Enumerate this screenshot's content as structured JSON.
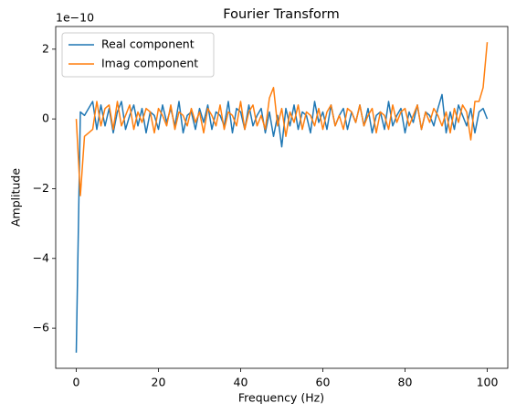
{
  "chart_data": {
    "type": "line",
    "title": "Fourier Transform",
    "xlabel": "Frequency (Hz)",
    "ylabel": "Amplitude",
    "y_offset_label": "1e−10",
    "x": [
      0,
      1,
      2,
      3,
      4,
      5,
      6,
      7,
      8,
      9,
      10,
      11,
      12,
      13,
      14,
      15,
      16,
      17,
      18,
      19,
      20,
      21,
      22,
      23,
      24,
      25,
      26,
      27,
      28,
      29,
      30,
      31,
      32,
      33,
      34,
      35,
      36,
      37,
      38,
      39,
      40,
      41,
      42,
      43,
      44,
      45,
      46,
      47,
      48,
      49,
      50,
      51,
      52,
      53,
      54,
      55,
      56,
      57,
      58,
      59,
      60,
      61,
      62,
      63,
      64,
      65,
      66,
      67,
      68,
      69,
      70,
      71,
      72,
      73,
      74,
      75,
      76,
      77,
      78,
      79,
      80,
      81,
      82,
      83,
      84,
      85,
      86,
      87,
      88,
      89,
      90,
      91,
      92,
      93,
      94,
      95,
      96,
      97,
      98,
      99,
      100
    ],
    "series": [
      {
        "name": "Real component",
        "color": "#1f77b4",
        "values": [
          -6.7,
          0.2,
          0.1,
          0.3,
          0.5,
          -0.3,
          0.4,
          -0.2,
          0.3,
          -0.4,
          0.2,
          0.5,
          -0.3,
          0.1,
          0.4,
          -0.2,
          0.3,
          -0.4,
          0.2,
          0.1,
          -0.3,
          0.4,
          -0.1,
          0.3,
          -0.2,
          0.5,
          -0.4,
          0.1,
          0.2,
          -0.3,
          0.3,
          -0.1,
          0.4,
          -0.3,
          0.2,
          0.1,
          -0.2,
          0.5,
          -0.4,
          0.3,
          0.2,
          -0.3,
          0.4,
          -0.2,
          0.1,
          0.3,
          -0.4,
          0.2,
          -0.5,
          0.1,
          -0.8,
          0.3,
          -0.2,
          0.4,
          -0.3,
          0.2,
          0.1,
          -0.4,
          0.5,
          -0.1,
          0.2,
          -0.3,
          0.4,
          -0.2,
          0.1,
          0.3,
          -0.3,
          0.2,
          -0.1,
          0.4,
          -0.2,
          0.3,
          -0.4,
          0.1,
          0.2,
          -0.3,
          0.5,
          -0.2,
          0.1,
          0.3,
          -0.4,
          0.2,
          -0.1,
          0.4,
          -0.3,
          0.2,
          0.1,
          -0.2,
          0.3,
          0.7,
          -0.4,
          0.2,
          -0.3,
          0.4,
          0.1,
          -0.2,
          0.3,
          -0.4,
          0.2,
          0.3,
          0.0
        ]
      },
      {
        "name": "Imag component",
        "color": "#ff7f0e",
        "values": [
          0,
          -2.2,
          -0.5,
          -0.4,
          -0.3,
          0.5,
          -0.2,
          0.3,
          0.4,
          -0.3,
          0.5,
          -0.2,
          0.1,
          0.4,
          -0.3,
          0.2,
          -0.1,
          0.3,
          0.2,
          -0.4,
          0.3,
          0.1,
          -0.2,
          0.4,
          -0.3,
          0.2,
          0.1,
          -0.2,
          0.3,
          -0.1,
          0.2,
          -0.4,
          0.3,
          0.1,
          -0.2,
          0.4,
          -0.3,
          0.2,
          0.1,
          -0.2,
          0.5,
          -0.3,
          0.2,
          0.4,
          -0.2,
          0.1,
          -0.3,
          0.6,
          0.9,
          -0.2,
          0.3,
          -0.5,
          0.2,
          -0.1,
          0.4,
          -0.3,
          0.2,
          0.1,
          -0.2,
          0.3,
          -0.3,
          0.2,
          0.4,
          -0.2,
          0.1,
          -0.3,
          0.3,
          0.2,
          -0.1,
          0.4,
          -0.2,
          0.1,
          0.3,
          -0.4,
          0.2,
          0.1,
          -0.3,
          0.4,
          -0.1,
          0.2,
          0.3,
          -0.2,
          0.1,
          0.4,
          -0.3,
          0.2,
          -0.1,
          0.3,
          0.1,
          -0.2,
          0.2,
          -0.4,
          0.3,
          -0.1,
          0.4,
          0.2,
          -0.6,
          0.5,
          0.5,
          0.9,
          2.2
        ]
      }
    ],
    "xlim": [
      -5,
      105
    ],
    "xticks": [
      0,
      20,
      40,
      60,
      80,
      100
    ],
    "ylim": [
      -7.15,
      2.65
    ],
    "yticks": [
      {
        "value": -6,
        "label": "−6"
      },
      {
        "value": -4,
        "label": "−4"
      },
      {
        "value": -2,
        "label": "−2"
      },
      0,
      2
    ],
    "legend": "upper left",
    "grid": false
  }
}
